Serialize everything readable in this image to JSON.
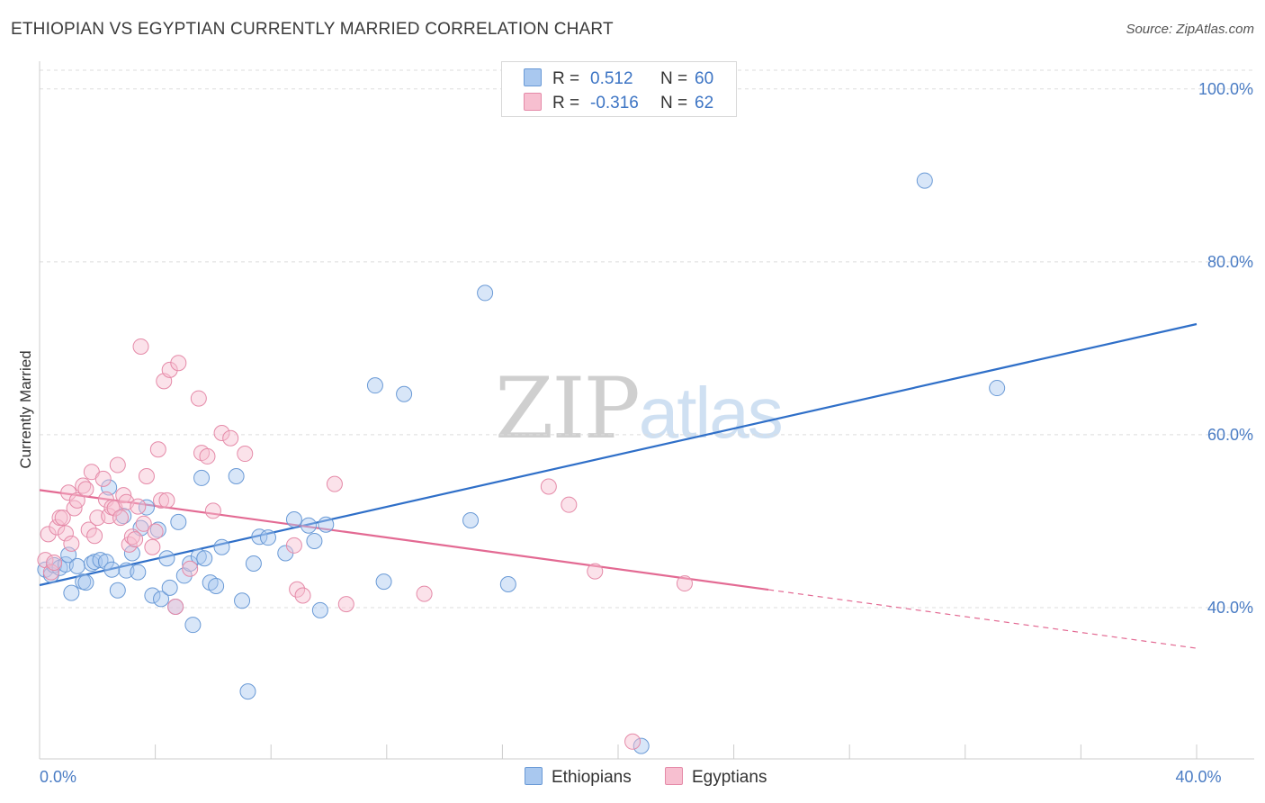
{
  "header": {
    "title": "ETHIOPIAN VS EGYPTIAN CURRENTLY MARRIED CORRELATION CHART",
    "source": "Source: ZipAtlas.com"
  },
  "watermark": {
    "part1": "ZIP",
    "part2": "atlas"
  },
  "legend_top": {
    "rows": [
      {
        "r_label": "R =",
        "r_value": "0.512",
        "n_label": "N =",
        "n_value": "60",
        "color": "#a9c8ef",
        "border": "#6a9ad6"
      },
      {
        "r_label": "R =",
        "r_value": "-0.316",
        "n_label": "N =",
        "n_value": "62",
        "color": "#f7bfd0",
        "border": "#e58aa8"
      }
    ]
  },
  "legend_bottom": {
    "items": [
      {
        "label": "Ethiopians",
        "color": "#a9c8ef",
        "border": "#6a9ad6"
      },
      {
        "label": "Egyptians",
        "color": "#f7bfd0",
        "border": "#e58aa8"
      }
    ]
  },
  "chart_data": {
    "type": "scatter",
    "xlabel": "",
    "ylabel": "Currently Married",
    "xlim": [
      0,
      40
    ],
    "ylim": [
      22.5,
      103
    ],
    "x_tick_labels": [
      {
        "value": 0,
        "label": "0.0%"
      },
      {
        "value": 40,
        "label": "40.0%"
      }
    ],
    "y_tick_labels": [
      {
        "value": 100,
        "label": "100.0%"
      },
      {
        "value": 80,
        "label": "80.0%"
      },
      {
        "value": 60,
        "label": "60.0%"
      },
      {
        "value": 40,
        "label": "40.0%"
      }
    ],
    "grid": true,
    "series": [
      {
        "name": "Ethiopians",
        "color": "#6a9ad6",
        "fill": "rgba(169,200,239,0.45)",
        "trend": {
          "x0": 0,
          "y0": 42.6,
          "x1": 40,
          "y1": 72.8,
          "solid_until": 40,
          "color": "#2f6fc8"
        },
        "points": [
          [
            0.2,
            44.4
          ],
          [
            0.4,
            43.8
          ],
          [
            0.5,
            44.9
          ],
          [
            0.7,
            44.6
          ],
          [
            0.9,
            45.0
          ],
          [
            1.0,
            46.1
          ],
          [
            1.1,
            41.7
          ],
          [
            1.3,
            44.8
          ],
          [
            1.5,
            43.0
          ],
          [
            1.6,
            42.9
          ],
          [
            1.8,
            45.1
          ],
          [
            1.9,
            45.3
          ],
          [
            2.1,
            45.5
          ],
          [
            2.3,
            45.3
          ],
          [
            2.4,
            53.9
          ],
          [
            2.5,
            44.4
          ],
          [
            2.7,
            42.0
          ],
          [
            2.9,
            50.6
          ],
          [
            3.0,
            44.3
          ],
          [
            3.2,
            46.3
          ],
          [
            3.4,
            44.1
          ],
          [
            3.5,
            49.2
          ],
          [
            3.7,
            51.6
          ],
          [
            3.9,
            41.4
          ],
          [
            4.1,
            49.0
          ],
          [
            4.2,
            41.0
          ],
          [
            4.4,
            45.7
          ],
          [
            4.5,
            42.3
          ],
          [
            4.7,
            40.1
          ],
          [
            4.8,
            49.9
          ],
          [
            5.0,
            43.7
          ],
          [
            5.2,
            45.1
          ],
          [
            5.3,
            38.0
          ],
          [
            5.5,
            45.9
          ],
          [
            5.6,
            55.0
          ],
          [
            5.7,
            45.7
          ],
          [
            5.9,
            42.9
          ],
          [
            6.1,
            42.5
          ],
          [
            6.3,
            47.0
          ],
          [
            6.8,
            55.2
          ],
          [
            7.0,
            40.8
          ],
          [
            7.2,
            30.3
          ],
          [
            7.4,
            45.1
          ],
          [
            7.6,
            48.2
          ],
          [
            7.9,
            48.1
          ],
          [
            8.5,
            46.3
          ],
          [
            8.8,
            50.2
          ],
          [
            9.3,
            49.5
          ],
          [
            9.5,
            47.7
          ],
          [
            9.7,
            39.7
          ],
          [
            9.9,
            49.6
          ],
          [
            11.6,
            65.7
          ],
          [
            11.9,
            43.0
          ],
          [
            12.6,
            64.7
          ],
          [
            14.9,
            50.1
          ],
          [
            15.4,
            76.4
          ],
          [
            16.2,
            42.7
          ],
          [
            20.8,
            24.0
          ],
          [
            30.6,
            89.4
          ],
          [
            33.1,
            65.4
          ]
        ]
      },
      {
        "name": "Egyptians",
        "color": "#e58aa8",
        "fill": "rgba(247,191,208,0.45)",
        "trend": {
          "x0": 0,
          "y0": 53.6,
          "x1": 40,
          "y1": 35.3,
          "solid_until": 25.2,
          "color": "#e36a93"
        },
        "points": [
          [
            0.2,
            45.5
          ],
          [
            0.3,
            48.5
          ],
          [
            0.4,
            44.1
          ],
          [
            0.5,
            45.2
          ],
          [
            0.6,
            49.3
          ],
          [
            0.7,
            50.4
          ],
          [
            0.8,
            50.4
          ],
          [
            0.9,
            48.6
          ],
          [
            1.0,
            53.3
          ],
          [
            1.1,
            47.4
          ],
          [
            1.2,
            51.5
          ],
          [
            1.3,
            52.4
          ],
          [
            1.5,
            54.1
          ],
          [
            1.6,
            53.7
          ],
          [
            1.7,
            49.0
          ],
          [
            1.8,
            55.7
          ],
          [
            1.9,
            48.3
          ],
          [
            2.0,
            50.4
          ],
          [
            2.2,
            54.9
          ],
          [
            2.3,
            52.5
          ],
          [
            2.4,
            50.6
          ],
          [
            2.5,
            51.6
          ],
          [
            2.6,
            51.5
          ],
          [
            2.7,
            56.5
          ],
          [
            2.8,
            50.4
          ],
          [
            2.9,
            53.0
          ],
          [
            3.0,
            52.2
          ],
          [
            3.1,
            47.3
          ],
          [
            3.2,
            48.2
          ],
          [
            3.3,
            47.9
          ],
          [
            3.4,
            51.7
          ],
          [
            3.5,
            70.2
          ],
          [
            3.6,
            49.7
          ],
          [
            3.7,
            55.2
          ],
          [
            3.9,
            47.0
          ],
          [
            4.0,
            48.8
          ],
          [
            4.1,
            58.3
          ],
          [
            4.2,
            52.4
          ],
          [
            4.3,
            66.2
          ],
          [
            4.4,
            52.4
          ],
          [
            4.5,
            67.5
          ],
          [
            4.7,
            40.1
          ],
          [
            4.8,
            68.3
          ],
          [
            5.2,
            44.5
          ],
          [
            5.5,
            64.2
          ],
          [
            5.6,
            57.9
          ],
          [
            5.8,
            57.5
          ],
          [
            6.0,
            51.2
          ],
          [
            6.3,
            60.2
          ],
          [
            6.6,
            59.6
          ],
          [
            7.1,
            57.8
          ],
          [
            8.8,
            47.2
          ],
          [
            8.9,
            42.1
          ],
          [
            9.1,
            41.4
          ],
          [
            10.2,
            54.3
          ],
          [
            10.6,
            40.4
          ],
          [
            13.3,
            41.6
          ],
          [
            17.6,
            54.0
          ],
          [
            18.3,
            51.9
          ],
          [
            19.2,
            44.2
          ],
          [
            20.5,
            24.5
          ],
          [
            22.3,
            42.8
          ]
        ]
      }
    ]
  }
}
